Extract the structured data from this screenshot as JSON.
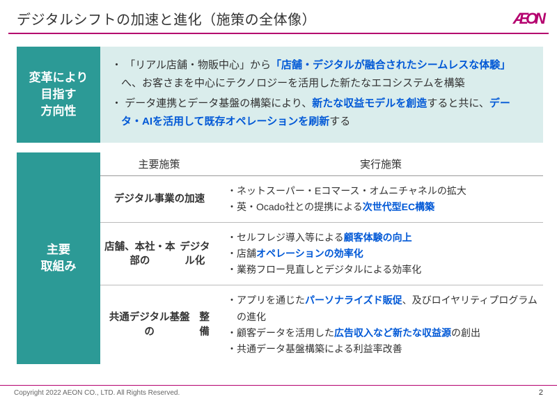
{
  "header": {
    "title": "デジタルシフトの加速と進化（施策の全体像）",
    "logo_text": "ÆON"
  },
  "colors": {
    "accent": "#b4006e",
    "teal": "#2c9a96",
    "teal_light": "#daedec",
    "highlight_text": "#0058d6"
  },
  "section1": {
    "label_line1": "変革により",
    "label_line2": "目指す",
    "label_line3": "方向性",
    "bullets": [
      {
        "pre": "「リアル店舗・物販中心」から",
        "hl": "「店舗・デジタルが融合されたシームレスな体験」",
        "post": "へ、お客さまを中心にテクノロジーを活用した新たなエコシステムを構築"
      },
      {
        "pre": "データ連携とデータ基盤の構築により、",
        "hl": "新たな収益モデルを創造",
        "mid": "すると共に、",
        "hl2": "データ・AIを活用して既存オペレーションを刷新",
        "post": "する"
      }
    ]
  },
  "section2": {
    "label_line1": "主要",
    "label_line2": "取組み",
    "col1_header": "主要施策",
    "col2_header": "実行施策",
    "initiatives": [
      {
        "name": "デジタル事業の加速",
        "actions": [
          {
            "pre": "ネットスーパー・Eコマース・オムニチャネルの拡大"
          },
          {
            "pre": "英・Ocado社との提携による",
            "hl": "次世代型EC構築"
          }
        ]
      },
      {
        "name_line1": "店舗、本社・本部の",
        "name_line2": "デジタル化",
        "actions": [
          {
            "pre": "セルフレジ導入等による",
            "hl": "顧客体験の向上"
          },
          {
            "pre": "店舗",
            "hl": "オペレーションの効率化"
          },
          {
            "pre": "業務フロー見直しとデジタルによる効率化"
          }
        ]
      },
      {
        "name_line1": "共通デジタル基盤の",
        "name_line2": "整備",
        "actions": [
          {
            "pre": "アプリを通じた",
            "hl": "パーソナライズド販促",
            "post": "、及びロイヤリティプログラムの進化"
          },
          {
            "pre": "顧客データを活用した",
            "hl": "広告収入など新たな収益源",
            "post": "の創出"
          },
          {
            "pre": "共通データ基盤構築による利益率改善"
          }
        ]
      }
    ]
  },
  "footer": {
    "copyright": "Copyright 2022 AEON CO., LTD. All Rights Reserved.",
    "page": "2"
  }
}
